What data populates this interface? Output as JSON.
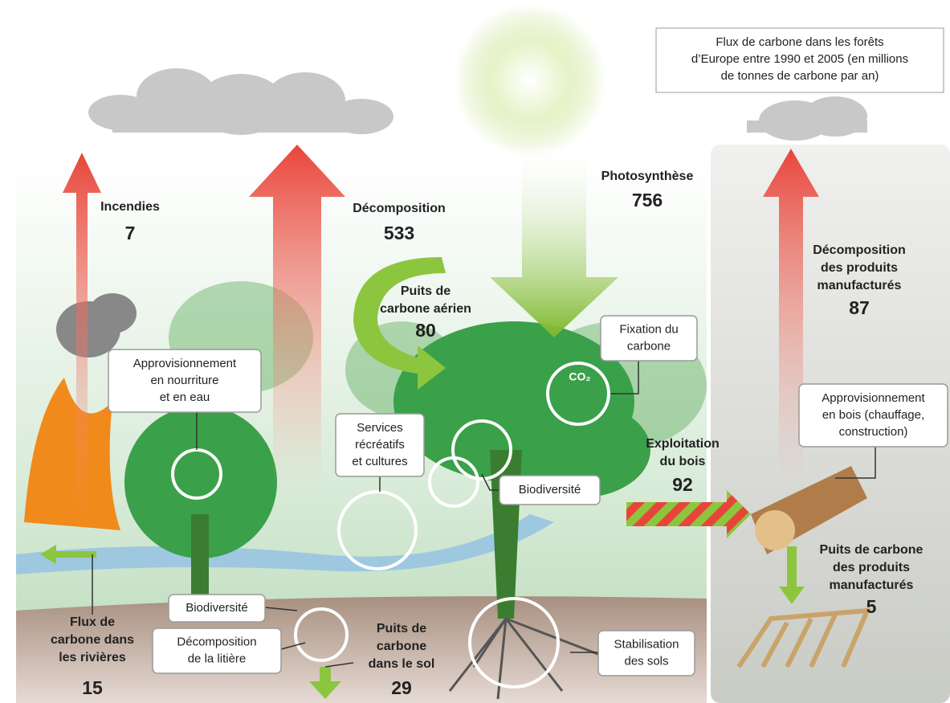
{
  "title": [
    "Flux de carbone dans les forêts",
    "d’Europe entre 1990 et 2005 (en millions",
    "de tonnes de carbone par an)"
  ],
  "flows": [
    {
      "label": [
        "Incendies"
      ],
      "value": 7
    },
    {
      "label": [
        "Décomposition"
      ],
      "value": 533
    },
    {
      "label": [
        "Photosynthèse"
      ],
      "value": 756
    },
    {
      "label": [
        "Puits de",
        "carbone aérien"
      ],
      "value": 80
    },
    {
      "label": [
        "Exploitation",
        "du bois"
      ],
      "value": 92
    },
    {
      "label": [
        "Décomposition",
        "des produits",
        "manufacturés"
      ],
      "value": 87
    },
    {
      "label": [
        "Puits de carbone",
        "des produits",
        "manufacturés"
      ],
      "value": 5
    },
    {
      "label": [
        "Flux de",
        "carbone dans",
        "les rivières"
      ],
      "value": 15
    },
    {
      "label": [
        "Puits de",
        "carbone",
        "dans le sol"
      ],
      "value": 29
    }
  ],
  "callouts": [
    {
      "label": [
        "Approvisionnement",
        "en nourriture",
        "et en eau"
      ]
    },
    {
      "label": [
        "Services",
        "récréatifs",
        "et cultures"
      ]
    },
    {
      "label": [
        "Biodiversité"
      ]
    },
    {
      "label": [
        "Fixation du",
        "carbone"
      ]
    },
    {
      "label": [
        "Approvisionnement",
        "en bois (chauffage,",
        "construction)"
      ]
    },
    {
      "label": [
        "Biodiversité"
      ]
    },
    {
      "label": [
        "Décomposition",
        "de la litière"
      ]
    },
    {
      "label": [
        "Stabilisation",
        "des sols"
      ]
    }
  ],
  "co2": "CO₂"
}
